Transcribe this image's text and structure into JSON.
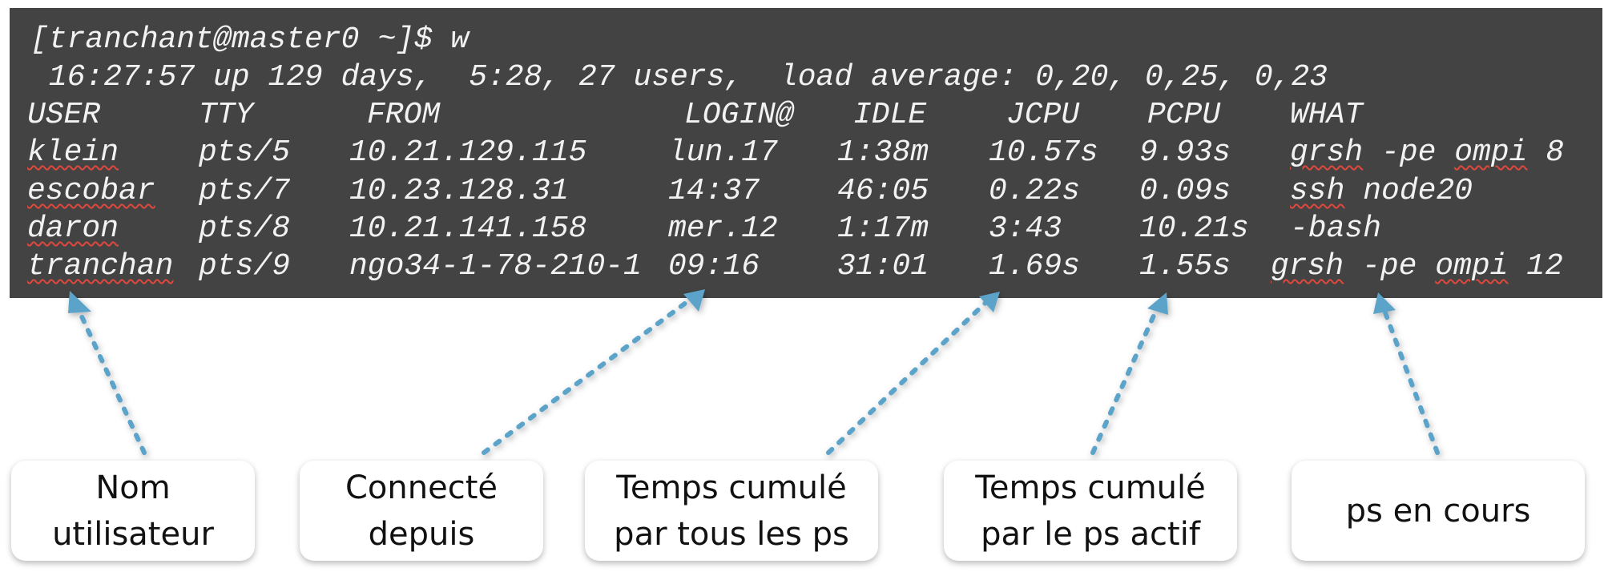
{
  "terminal": {
    "prompt": "[tranchant@master0 ~]$ w",
    "uptime": " 16:27:57 up 129 days,  5:28, 27 users,  load average: 0,20, 0,25, 0,23",
    "headers": [
      "USER",
      "TTY",
      "FROM",
      "LOGIN@",
      "IDLE",
      "JCPU",
      "PCPU",
      "WHAT"
    ],
    "rows": [
      {
        "user": "klein",
        "tty": "pts/5",
        "from": "10.21.129.115",
        "login": "lun.17",
        "idle": "1:38m",
        "jcpu": "10.57s",
        "pcpu": "9.93s",
        "what": [
          {
            "t": "grsh",
            "s": true
          },
          {
            "t": " -pe ",
            "s": false
          },
          {
            "t": "ompi",
            "s": true
          },
          {
            "t": " 8",
            "s": false
          }
        ]
      },
      {
        "user": "escobar",
        "tty": "pts/7",
        "from": "10.23.128.31",
        "login": "14:37",
        "idle": "46:05",
        "jcpu": "0.22s",
        "pcpu": "0.09s",
        "what": [
          {
            "t": "ssh",
            "s": true
          },
          {
            "t": " node20",
            "s": false
          }
        ]
      },
      {
        "user": "daron",
        "tty": "pts/8",
        "from": "10.21.141.158",
        "login": "mer.12",
        "idle": "1:17m",
        "jcpu": "3:43",
        "pcpu": "10.21s",
        "what": [
          {
            "t": "-bash",
            "s": false
          }
        ]
      },
      {
        "user": "tranchan",
        "tty": "pts/9",
        "from": "ngo34-1-78-210-1",
        "login": "09:16",
        "idle": "31:01",
        "jcpu": "1.69s",
        "pcpu": "1.55s",
        "what": [
          {
            "t": "grsh",
            "s": true
          },
          {
            "t": " -pe ",
            "s": false
          },
          {
            "t": "ompi",
            "s": true
          },
          {
            "t": " 12",
            "s": false
          }
        ]
      }
    ]
  },
  "callouts": [
    {
      "id": "user",
      "label": "Nom\nutilisateur"
    },
    {
      "id": "login",
      "label": "Connecté\ndepuis"
    },
    {
      "id": "jcpu",
      "label": "Temps cumulé\npar tous les ps"
    },
    {
      "id": "pcpu",
      "label": "Temps cumulé\npar le ps actif"
    },
    {
      "id": "what",
      "label": "ps en cours"
    }
  ],
  "colors": {
    "terminal_bg": "#434343",
    "terminal_text": "#f2f2f2",
    "spellcheck_underline": "#e0483d",
    "arrow": "#5ba3c9"
  }
}
